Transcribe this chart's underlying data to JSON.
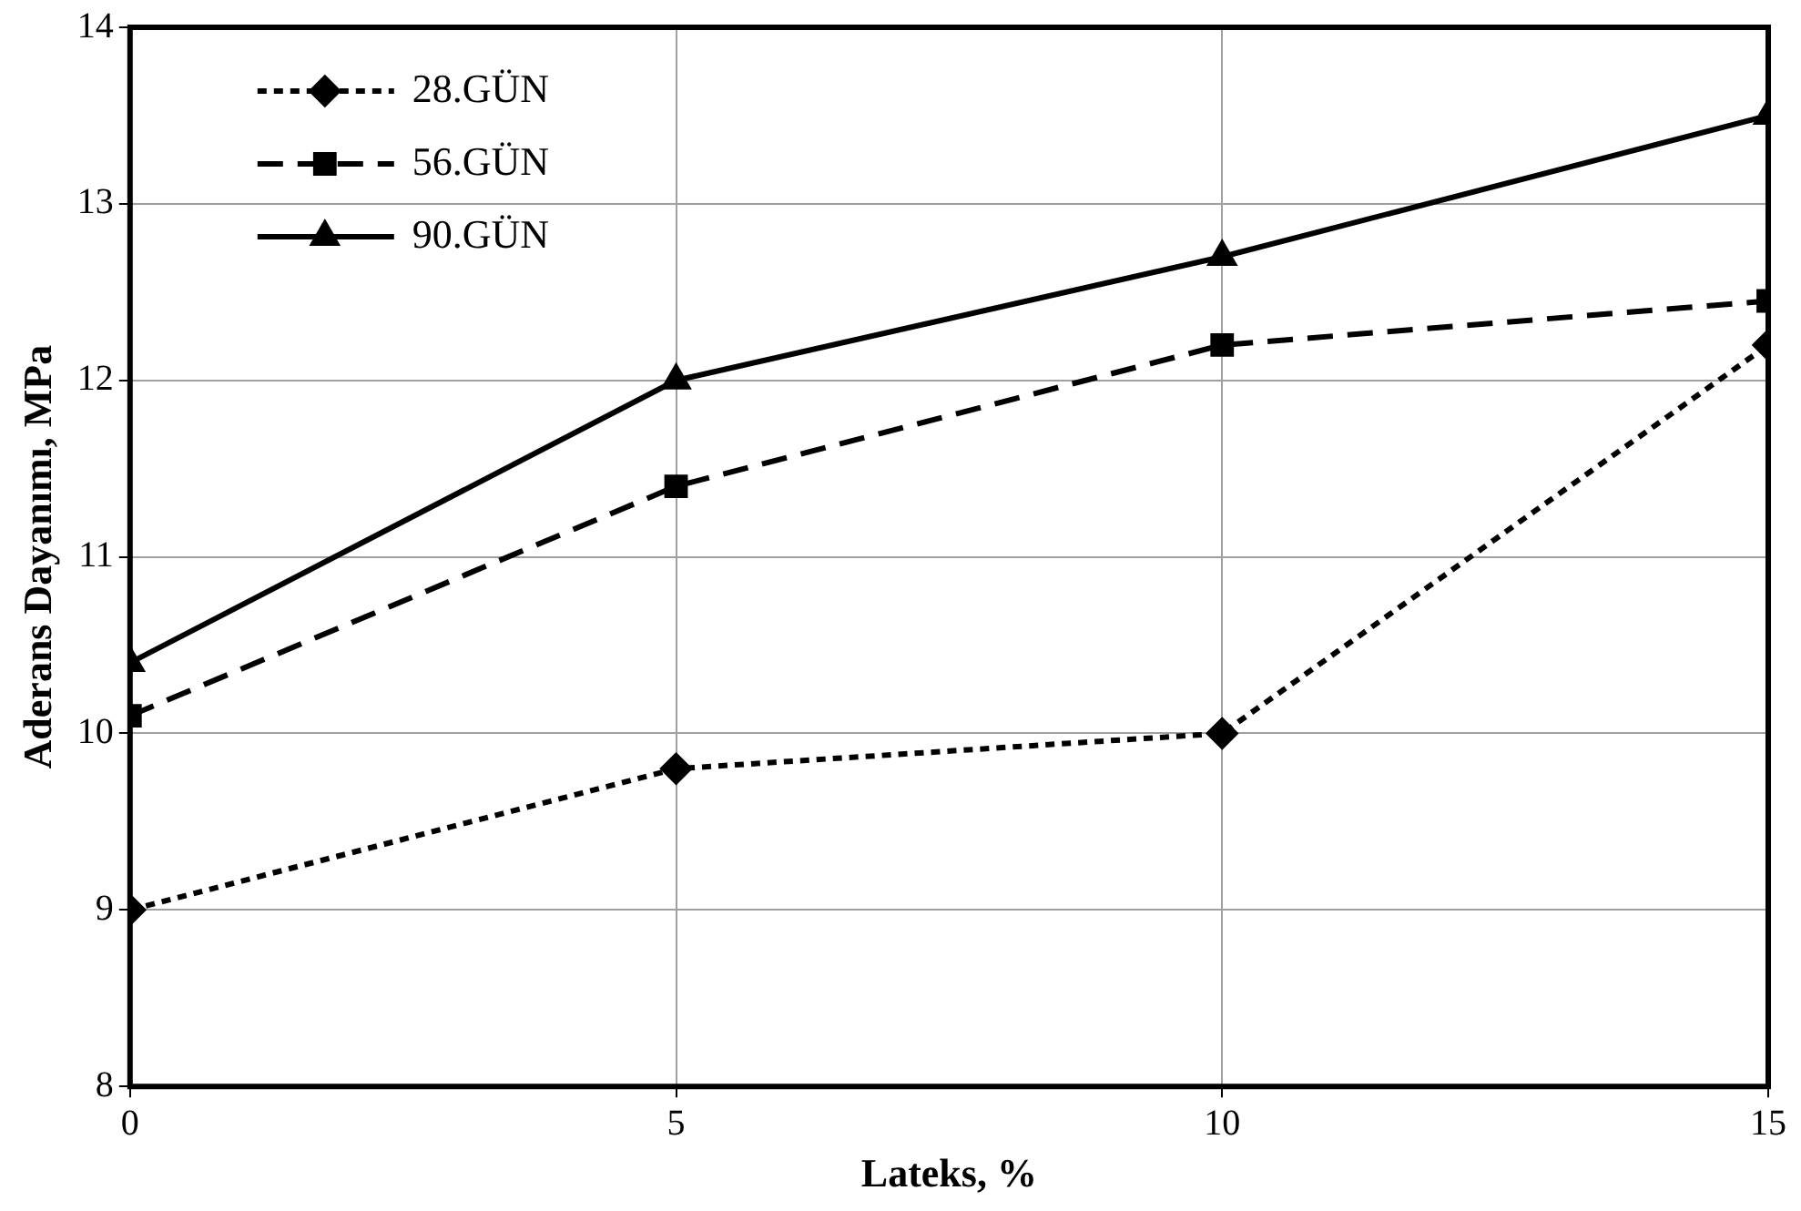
{
  "chart_data": {
    "type": "line",
    "xlabel": "Lateks, %",
    "ylabel": "Aderans Dayanımı, MPa",
    "x": [
      0,
      5,
      10,
      15
    ],
    "xlim": [
      0,
      15
    ],
    "xticks": [
      0,
      5,
      10,
      15
    ],
    "ylim": [
      8,
      14
    ],
    "yticks": [
      8,
      9,
      10,
      11,
      12,
      13,
      14
    ],
    "grid": true,
    "legend": "top left",
    "series": [
      {
        "name": "28.GÜN",
        "color": "#000000",
        "marker": "diamond",
        "line_style": "dotted",
        "values": [
          9,
          9.8,
          10,
          12.2
        ]
      },
      {
        "name": "56.GÜN",
        "color": "#000000",
        "marker": "square",
        "line_style": "dashed",
        "values": [
          10.1,
          11.4,
          12.2,
          12.45
        ]
      },
      {
        "name": "90.GÜN",
        "color": "#000000",
        "marker": "triangle",
        "line_style": "solid",
        "values": [
          10.4,
          12.0,
          12.7,
          13.5
        ]
      }
    ]
  }
}
